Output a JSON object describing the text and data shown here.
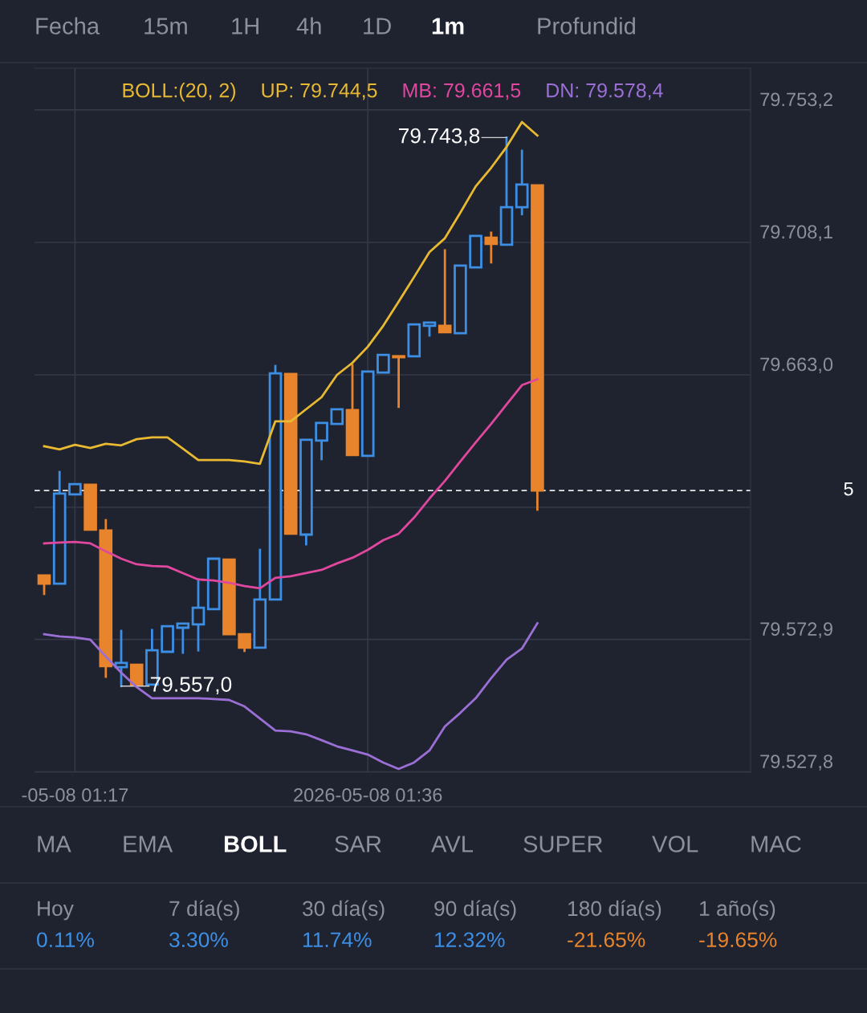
{
  "chart_data": {
    "type": "candlestick",
    "categories": [
      null,
      null,
      "-05-08 01:17",
      null,
      null,
      null,
      null,
      null,
      null,
      null,
      null,
      null,
      null,
      null,
      null,
      null,
      null,
      null,
      null,
      null,
      null,
      "2026-05-08 01:36",
      null,
      null,
      null,
      null,
      null,
      null,
      null,
      null,
      null,
      null,
      null
    ],
    "ohlc": [
      [
        79594.7,
        79594.7,
        79588.4,
        79591.9
      ],
      [
        79591.9,
        79629.9,
        79591.9,
        79622.6
      ],
      [
        79622.3,
        79625.8,
        79622.3,
        79625.8
      ],
      [
        79625.6,
        79625.6,
        79610.3,
        79610.3
      ],
      [
        79610.0,
        79613.5,
        79560.2,
        79563.8
      ],
      [
        79563.5,
        79575.8,
        79557.0,
        79564.9
      ],
      [
        79564.3,
        79564.3,
        79557.5,
        79557.5
      ],
      [
        79557.5,
        79576.1,
        79557.5,
        79569.2
      ],
      [
        79568.7,
        79577.4,
        79568.7,
        79577.4
      ],
      [
        79576.9,
        79578.3,
        79568.4,
        79578.3
      ],
      [
        79578.0,
        79593.3,
        79569.2,
        79583.7
      ],
      [
        79583.2,
        79600.4,
        79583.2,
        79600.4
      ],
      [
        79600.1,
        79600.1,
        79574.7,
        79574.7
      ],
      [
        79574.7,
        79574.7,
        79569.0,
        79570.1
      ],
      [
        79570.1,
        79603.4,
        79570.1,
        79586.5
      ],
      [
        79586.5,
        79666.0,
        79586.5,
        79663.5
      ],
      [
        79663.3,
        79663.3,
        79608.9,
        79608.9
      ],
      [
        79608.6,
        79640.9,
        79605.3,
        79640.9
      ],
      [
        79640.6,
        79646.6,
        79634.3,
        79646.6
      ],
      [
        79646.3,
        79651.3,
        79646.3,
        79651.3
      ],
      [
        79651.0,
        79666.3,
        79635.7,
        79635.7
      ],
      [
        79635.4,
        79664.1,
        79635.4,
        79664.1
      ],
      [
        79663.8,
        79669.8,
        79663.8,
        79669.8
      ],
      [
        79669.3,
        79669.3,
        79652.1,
        79669.0
      ],
      [
        79669.3,
        79680.2,
        79669.3,
        79680.2
      ],
      [
        79679.7,
        79680.8,
        79676.4,
        79680.8
      ],
      [
        79679.7,
        79705.4,
        79677.5,
        79677.5
      ],
      [
        79677.2,
        79700.2,
        79677.2,
        79700.2
      ],
      [
        79699.6,
        79710.3,
        79699.6,
        79710.3
      ],
      [
        79709.7,
        79711.4,
        79701.3,
        79707.6
      ],
      [
        79707.3,
        79743.8,
        79707.3,
        79720.1
      ],
      [
        79720.1,
        79739.3,
        79717.7,
        79727.8
      ],
      [
        79727.5,
        79727.5,
        79617.1,
        79623.6
      ]
    ],
    "colors": [
      "#e8842c",
      "#3d8fe6",
      "#3d8fe6",
      "#e8842c",
      "#e8842c",
      "#3d8fe6",
      "#e8842c",
      "#3d8fe6",
      "#3d8fe6",
      "#3d8fe6",
      "#3d8fe6",
      "#3d8fe6",
      "#e8842c",
      "#e8842c",
      "#3d8fe6",
      "#3d8fe6",
      "#e8842c",
      "#3d8fe6",
      "#3d8fe6",
      "#3d8fe6",
      "#e8842c",
      "#3d8fe6",
      "#3d8fe6",
      "#e8842c",
      "#3d8fe6",
      "#3d8fe6",
      "#e8842c",
      "#3d8fe6",
      "#3d8fe6",
      "#e8842c",
      "#3d8fe6",
      "#3d8fe6",
      "#e8842c"
    ],
    "series": [
      {
        "type": "line",
        "name": "UP: 79.744,5",
        "color": "#e8b931",
        "values": [
          79638.7,
          79637.6,
          79639.2,
          79638.1,
          79639.5,
          79639.0,
          79641.1,
          79641.7,
          79641.7,
          79637.9,
          79634.0,
          79634.0,
          79634.0,
          79633.5,
          79632.7,
          79647.2,
          79647.2,
          79651.3,
          79655.4,
          79663.0,
          79667.1,
          79672.6,
          79679.7,
          79687.9,
          79696.3,
          79704.8,
          79709.5,
          79718.2,
          79727.2,
          79733.5,
          79740.6,
          79749.1,
          79744.5
        ]
      },
      {
        "type": "line",
        "name": "MB: 79.661,5",
        "color": "#e0479e",
        "values": [
          79605.6,
          79605.9,
          79606.1,
          79605.6,
          79602.9,
          79600.4,
          79598.5,
          79597.9,
          79597.7,
          79595.5,
          79593.3,
          79593.0,
          79592.2,
          79591.1,
          79590.3,
          79593.9,
          79594.4,
          79595.5,
          79596.6,
          79598.8,
          79600.7,
          79603.4,
          79606.7,
          79608.9,
          79614.4,
          79620.9,
          79626.9,
          79633.5,
          79640.0,
          79646.3,
          79652.9,
          79659.5,
          79661.5
        ]
      },
      {
        "type": "line",
        "name": "DN: 79.578,4",
        "color": "#9b6fd6",
        "values": [
          79574.7,
          79573.9,
          79573.6,
          79572.8,
          79567.1,
          79561.6,
          79556.7,
          79552.9,
          79552.9,
          79552.9,
          79552.9,
          79552.6,
          79552.3,
          79550.1,
          79546.0,
          79541.9,
          79541.6,
          79540.6,
          79538.6,
          79536.5,
          79535.1,
          79533.7,
          79531.0,
          79528.8,
          79531.0,
          79535.1,
          79543.3,
          79547.9,
          79552.9,
          79559.7,
          79566.0,
          79569.8,
          79578.4
        ]
      }
    ],
    "legend_title": "BOLL:(20, 2)",
    "legend": "top",
    "ylim": [
      79527.7,
      79767.4
    ],
    "yticks": [
      {
        "value": 79527.8,
        "label": "79.527,8"
      },
      {
        "value": 79572.9,
        "label": "79.572,9"
      },
      {
        "value": 79617.9,
        "label": null
      },
      {
        "value": 79663.0,
        "label": "79.663,0"
      },
      {
        "value": 79708.1,
        "label": "79.708,1"
      },
      {
        "value": 79753.2,
        "label": "79.753,2"
      }
    ],
    "grid": true,
    "ref_lines": [
      {
        "axis": "y",
        "value": 79623.6,
        "color": "#ffffff",
        "line_style": "dashed"
      }
    ],
    "annotations": [
      "79.743,8",
      "79.557,0",
      "Fecha",
      "15m",
      "1H",
      "4h",
      "1D",
      "1m",
      "Profundid",
      "MA",
      "EMA",
      "BOLL",
      "SAR",
      "AVL",
      "SUPER",
      "VOL",
      "MAC",
      "Hoy",
      "0.11%",
      "7 día(s)",
      "3.30%",
      "30 día(s)",
      "11.74%",
      "90 día(s)",
      "12.32%",
      "180 día(s)",
      "-21.65%",
      "1 año(s)",
      "-19.65%",
      "5"
    ]
  }
}
